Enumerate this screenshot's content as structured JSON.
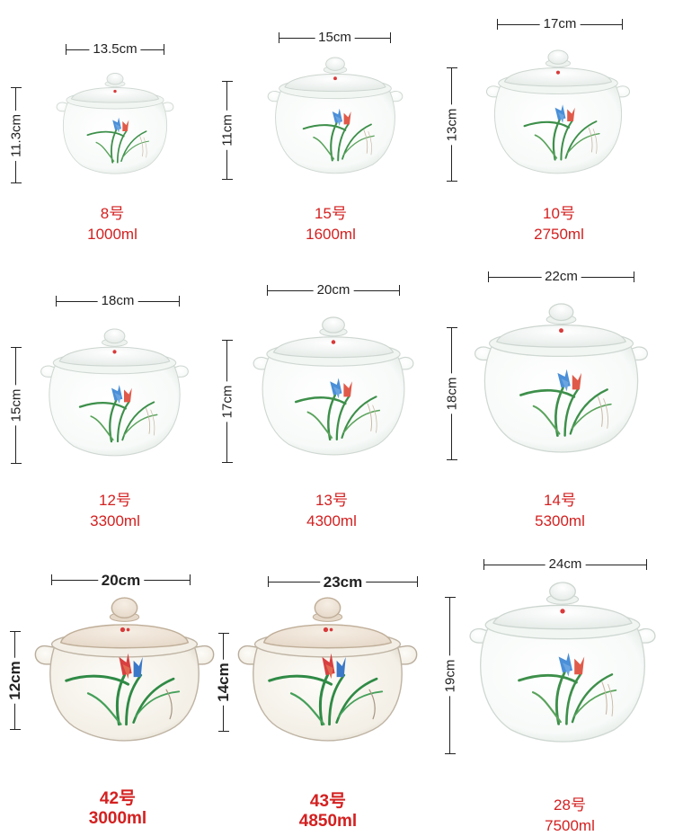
{
  "colors": {
    "label": "#d42020",
    "dimension": "#222222",
    "leaf": "#3d8f4a",
    "flower_blue": "#4a8fd8",
    "flower_red": "#e05a4a",
    "glaze": "#ffffff",
    "glaze_shadow": "#e6ece8"
  },
  "products": [
    {
      "model": "8号",
      "capacity": "1000ml",
      "width": "13.5cm",
      "height": "11.3cm"
    },
    {
      "model": "15号",
      "capacity": "1600ml",
      "width": "15cm",
      "height": "11cm"
    },
    {
      "model": "10号",
      "capacity": "2750ml",
      "width": "17cm",
      "height": "13cm"
    },
    {
      "model": "12号",
      "capacity": "3300ml",
      "width": "18cm",
      "height": "15cm"
    },
    {
      "model": "13号",
      "capacity": "4300ml",
      "width": "20cm",
      "height": "17cm"
    },
    {
      "model": "14号",
      "capacity": "5300ml",
      "width": "22cm",
      "height": "18cm"
    },
    {
      "model": "42号",
      "capacity": "3000ml",
      "width": "20cm",
      "height": "12cm"
    },
    {
      "model": "43号",
      "capacity": "4850ml",
      "width": "23cm",
      "height": "14cm"
    },
    {
      "model": "28号",
      "capacity": "7500ml",
      "width": "24cm",
      "height": "19cm"
    }
  ]
}
